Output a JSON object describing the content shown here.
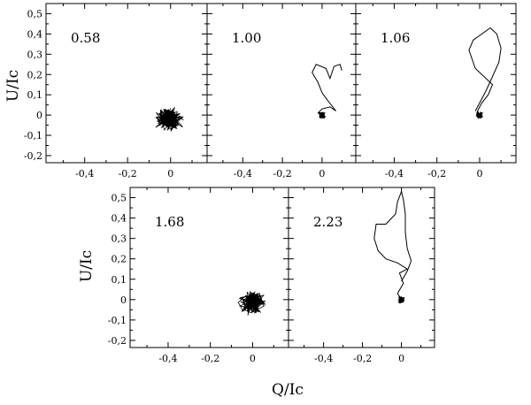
{
  "chart_data": {
    "type": "scatter",
    "xlabel": "Q/Ic",
    "ylabel": "U/Ic",
    "xlim": [
      -0.58,
      0.17
    ],
    "ylim": [
      -0.235,
      0.55
    ],
    "xticks": [
      -0.4,
      -0.2,
      0
    ],
    "xtick_labels": [
      "-0,4",
      "-0,2",
      "0"
    ],
    "yticks": [
      -0.2,
      -0.1,
      0,
      0.1,
      0.2,
      0.3,
      0.4,
      0.5
    ],
    "ytick_labels": [
      "-0,2",
      "-0,1",
      "0",
      "0,1",
      "0,2",
      "0,3",
      "0,4",
      "0,5"
    ],
    "grid": false,
    "panels": [
      {
        "label": "0.58",
        "kind": "cloud",
        "center": [
          -0.005,
          -0.02
        ],
        "spread": [
          0.042,
          0.04
        ],
        "extent": [
          [
            -0.15,
            -0.13
          ],
          [
            0.1,
            0.08
          ]
        ]
      },
      {
        "label": "1.00",
        "kind": "track",
        "points": [
          [
            0.0,
            0.0
          ],
          [
            -0.02,
            0.01
          ],
          [
            0.0,
            0.03
          ],
          [
            0.04,
            0.04
          ],
          [
            0.07,
            0.02
          ],
          [
            0.03,
            0.07
          ],
          [
            0.0,
            0.11
          ],
          [
            -0.02,
            0.16
          ],
          [
            -0.05,
            0.21
          ],
          [
            -0.03,
            0.25
          ],
          [
            0.02,
            0.23
          ],
          [
            0.04,
            0.18
          ],
          [
            0.06,
            0.24
          ],
          [
            0.09,
            0.25
          ],
          [
            0.1,
            0.22
          ]
        ]
      },
      {
        "label": "1.06",
        "kind": "track",
        "points": [
          [
            0.0,
            0.0
          ],
          [
            -0.01,
            0.02
          ],
          [
            0.01,
            0.06
          ],
          [
            0.04,
            0.1
          ],
          [
            0.06,
            0.15
          ],
          [
            0.03,
            0.18
          ],
          [
            -0.02,
            0.23
          ],
          [
            -0.05,
            0.32
          ],
          [
            -0.03,
            0.37
          ],
          [
            0.05,
            0.43
          ],
          [
            0.08,
            0.4
          ],
          [
            0.1,
            0.33
          ],
          [
            0.09,
            0.26
          ],
          [
            0.06,
            0.19
          ],
          [
            0.03,
            0.12
          ],
          [
            0.0,
            0.06
          ],
          [
            -0.02,
            0.02
          ]
        ]
      },
      {
        "label": "1.68",
        "kind": "cloud",
        "center": [
          0.0,
          -0.01
        ],
        "spread": [
          0.04,
          0.04
        ],
        "extent": [
          [
            -0.12,
            -0.13
          ],
          [
            0.12,
            0.1
          ]
        ]
      },
      {
        "label": "2.23",
        "kind": "track",
        "points": [
          [
            0.0,
            0.0
          ],
          [
            -0.02,
            0.03
          ],
          [
            0.01,
            0.08
          ],
          [
            -0.01,
            0.13
          ],
          [
            0.03,
            0.15
          ],
          [
            -0.02,
            0.18
          ],
          [
            -0.08,
            0.2
          ],
          [
            -0.12,
            0.24
          ],
          [
            -0.14,
            0.3
          ],
          [
            -0.13,
            0.37
          ],
          [
            -0.08,
            0.37
          ],
          [
            -0.03,
            0.42
          ],
          [
            -0.02,
            0.48
          ],
          [
            0.0,
            0.53
          ],
          [
            0.01,
            0.49
          ],
          [
            0.02,
            0.42
          ],
          [
            0.02,
            0.33
          ],
          [
            0.03,
            0.25
          ],
          [
            0.05,
            0.19
          ],
          [
            0.03,
            0.14
          ],
          [
            0.0,
            0.09
          ]
        ]
      }
    ]
  }
}
